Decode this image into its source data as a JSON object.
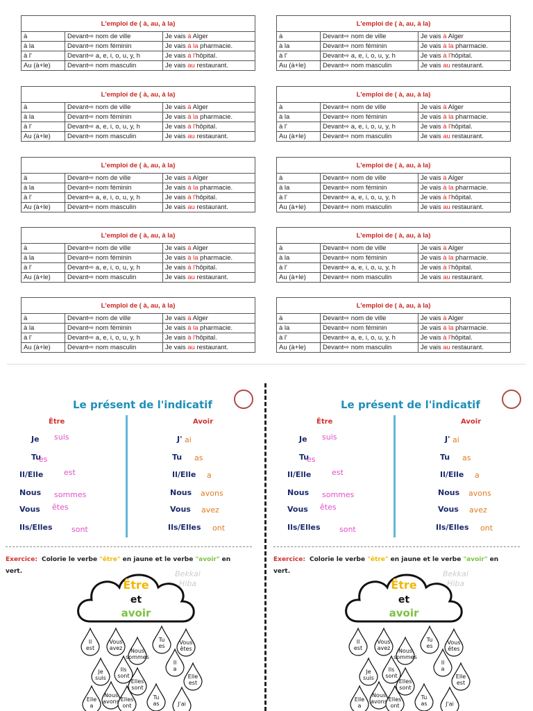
{
  "emploi_table": {
    "title": "L'emploi de ( à, au, à la)",
    "rows": [
      [
        "à",
        "Devant⇨ nom de ville",
        {
          "prefix": "Je vais ",
          "highlight": "à",
          "suffix": " Alger"
        }
      ],
      [
        "à la",
        "Devant⇨ nom féminin",
        {
          "prefix": "Je vais ",
          "highlight": "à la",
          "suffix": " pharmacie."
        }
      ],
      [
        "à l'",
        "Devant⇨ a, e, i, o, u, y, h",
        {
          "prefix": "Je vais ",
          "highlight": "à l'",
          "suffix": "hôpital."
        }
      ],
      [
        "Au (à+le)",
        "Devant⇨ nom masculin",
        {
          "prefix": "Je vais ",
          "highlight": "au",
          "suffix": " restaurant."
        }
      ]
    ]
  },
  "worksheet": {
    "title": "Le présent de l'indicatif",
    "etre": {
      "heading": "Être",
      "rows": [
        [
          "Je",
          "suis"
        ],
        [
          "Tu",
          "es"
        ],
        [
          "Il/Elle",
          "est"
        ],
        [
          "Nous",
          "sommes"
        ],
        [
          "Vous",
          "êtes"
        ],
        [
          "Ils/Elles",
          "sont"
        ]
      ]
    },
    "avoir": {
      "heading": "Avoir",
      "rows": [
        [
          "J'",
          "ai"
        ],
        [
          "Tu",
          "as"
        ],
        [
          "Il/Elle",
          "a"
        ],
        [
          "Nous",
          "avons"
        ],
        [
          "Vous",
          "avez"
        ],
        [
          "Ils/Elles",
          "ont"
        ]
      ]
    },
    "exercise": {
      "label": "Exercice:",
      "parts": [
        {
          "text": "Colorie le verbe ",
          "color": "#222222"
        },
        {
          "text": "\"être\"",
          "color": "#f2b705"
        },
        {
          "text": " en jaune et le verbe ",
          "color": "#222222"
        },
        {
          "text": "\"avoir\"",
          "color": "#7cc242"
        },
        {
          "text": " en vert.",
          "color": "#222222"
        }
      ]
    },
    "cloud": [
      {
        "text": "Être",
        "color": "#f2b705"
      },
      {
        "text": "et",
        "color": "#111111"
      },
      {
        "text": "avoir",
        "color": "#7cc242"
      }
    ],
    "watermark": [
      "Bekkai",
      "Hiba"
    ],
    "drops": [
      [
        "Il",
        "est"
      ],
      [
        "Vous",
        "avez"
      ],
      [
        "Tu",
        "es"
      ],
      [
        "Vous",
        "êtes"
      ],
      [
        "Nous",
        "sommes"
      ],
      [
        "Ils",
        "sont"
      ],
      [
        "Il",
        "a"
      ],
      [
        "Je",
        "suis"
      ],
      [
        "Elles",
        "sont"
      ],
      [
        "Elle",
        "est"
      ],
      [
        "Elle",
        "a"
      ],
      [
        "Nous",
        "avons"
      ],
      [
        "Elles",
        "ont"
      ],
      [
        "Tu",
        "as"
      ],
      [
        "J'ai"
      ]
    ]
  }
}
